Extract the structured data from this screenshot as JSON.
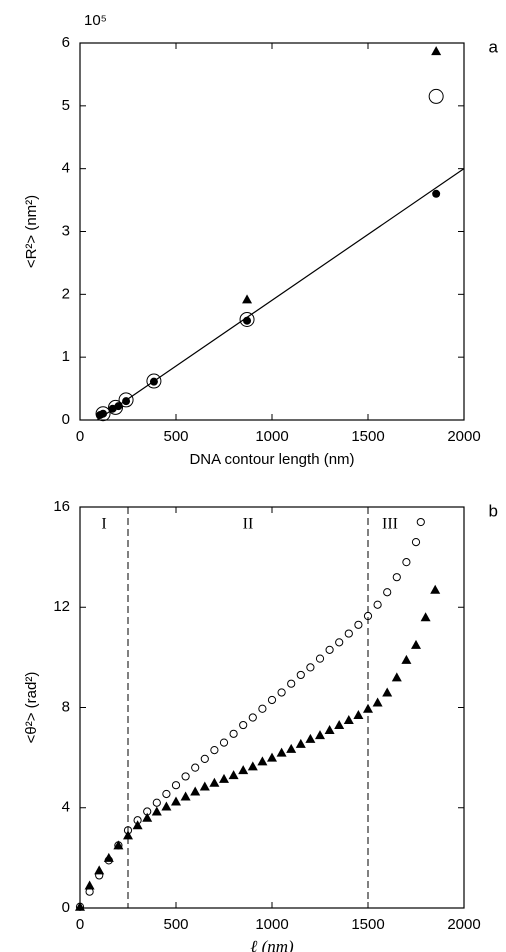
{
  "chart_data": [
    {
      "type": "scatter",
      "panel_label": "a",
      "multiplier": "10⁵",
      "xlabel": "DNA contour length (nm)",
      "ylabel": "<R²> (nm²)",
      "xlim": [
        0,
        2000
      ],
      "xticks": [
        0,
        500,
        1000,
        1500,
        2000
      ],
      "ylim": [
        0,
        6
      ],
      "yticks": [
        0,
        1,
        2,
        3,
        4,
        5,
        6
      ],
      "series": [
        {
          "marker": "triangle",
          "color": "#000000",
          "x": [
            870,
            1855
          ],
          "values": [
            1.92,
            5.87
          ]
        },
        {
          "marker": "open-circle",
          "color": "#000000",
          "x": [
            120,
            185,
            240,
            385,
            870,
            1855
          ],
          "values": [
            0.1,
            0.2,
            0.32,
            0.62,
            1.6,
            5.15
          ]
        },
        {
          "marker": "filled-circle",
          "color": "#000000",
          "x": [
            105,
            120,
            170,
            200,
            240,
            385,
            870,
            1855
          ],
          "values": [
            0.08,
            0.1,
            0.18,
            0.22,
            0.3,
            0.61,
            1.58,
            3.6
          ]
        },
        {
          "marker": "line",
          "color": "#000000",
          "x": [
            90,
            2000
          ],
          "values": [
            0,
            4.0
          ]
        }
      ]
    },
    {
      "type": "scatter",
      "panel_label": "b",
      "xlabel": "ℓ (nm)",
      "ylabel": "<θ²> (rad²)",
      "xlim": [
        0,
        2000
      ],
      "xticks": [
        0,
        500,
        1000,
        1500,
        2000
      ],
      "ylim": [
        0,
        16
      ],
      "yticks": [
        0,
        4,
        8,
        12,
        16
      ],
      "vlines": [
        250,
        1500
      ],
      "regions": [
        "I",
        "II",
        "III"
      ],
      "series": [
        {
          "marker": "open-circle",
          "color": "#000000",
          "x": [
            0,
            50,
            100,
            150,
            200,
            250,
            300,
            350,
            400,
            450,
            500,
            550,
            600,
            650,
            700,
            750,
            800,
            850,
            900,
            950,
            1000,
            1050,
            1100,
            1150,
            1200,
            1250,
            1300,
            1350,
            1400,
            1450,
            1500,
            1550,
            1600,
            1650,
            1700,
            1750,
            1775
          ],
          "values": [
            0.05,
            0.65,
            1.3,
            1.9,
            2.5,
            3.1,
            3.5,
            3.85,
            4.2,
            4.55,
            4.9,
            5.25,
            5.6,
            5.95,
            6.3,
            6.6,
            6.95,
            7.3,
            7.6,
            7.95,
            8.3,
            8.6,
            8.95,
            9.3,
            9.6,
            9.95,
            10.3,
            10.6,
            10.95,
            11.3,
            11.65,
            12.1,
            12.6,
            13.2,
            13.8,
            14.6,
            15.4
          ]
        },
        {
          "marker": "triangle",
          "color": "#000000",
          "x": [
            0,
            50,
            100,
            150,
            200,
            250,
            300,
            350,
            400,
            450,
            500,
            550,
            600,
            650,
            700,
            750,
            800,
            850,
            900,
            950,
            1000,
            1050,
            1100,
            1150,
            1200,
            1250,
            1300,
            1350,
            1400,
            1450,
            1500,
            1550,
            1600,
            1650,
            1700,
            1750,
            1800,
            1850
          ],
          "values": [
            0.05,
            0.9,
            1.5,
            2.0,
            2.5,
            2.9,
            3.3,
            3.6,
            3.85,
            4.05,
            4.25,
            4.45,
            4.65,
            4.85,
            5.0,
            5.15,
            5.3,
            5.5,
            5.65,
            5.85,
            6.0,
            6.2,
            6.35,
            6.55,
            6.75,
            6.9,
            7.1,
            7.3,
            7.5,
            7.7,
            7.95,
            8.2,
            8.6,
            9.2,
            9.9,
            10.5,
            11.6,
            12.7
          ]
        }
      ]
    }
  ]
}
